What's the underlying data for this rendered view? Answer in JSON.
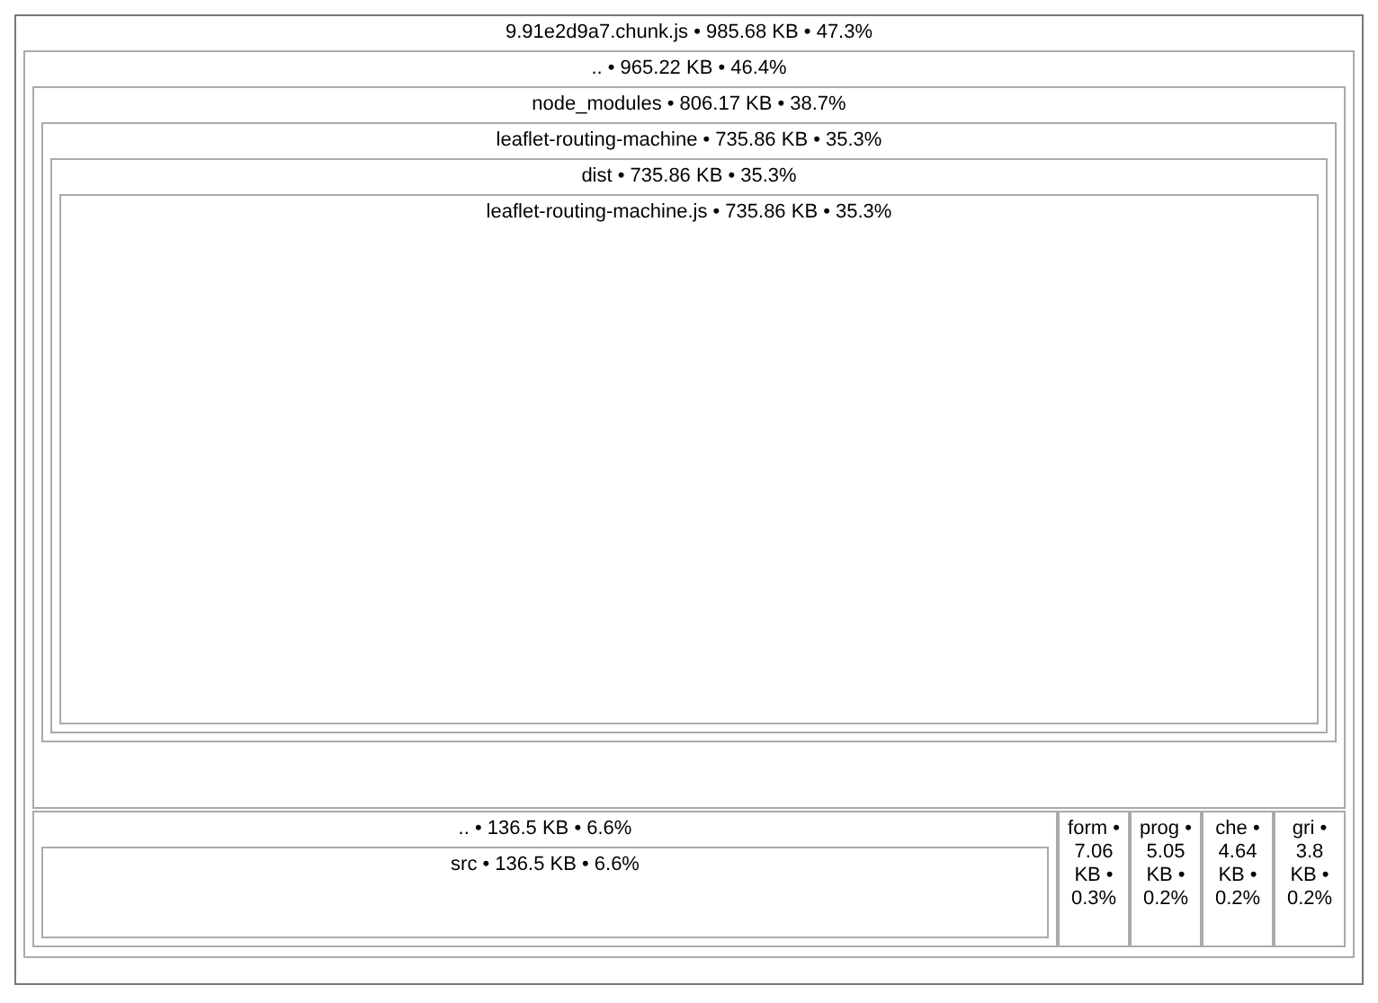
{
  "chart_data": {
    "type": "other",
    "categories": [
      "9.91e2d9a7.chunk.js",
      "..",
      "node_modules",
      "..",
      "form",
      "prog",
      "che",
      "gri",
      "leaflet-routing-machine",
      "src",
      "dist",
      "leaflet-routing-machine.js"
    ],
    "values": [
      985.68,
      965.22,
      806.17,
      136.5,
      7.06,
      5.05,
      4.64,
      3.8,
      735.86,
      136.5,
      735.86,
      735.86
    ],
    "value_labels": [
      "• 985.68 KB • 47.3%",
      "• 965.22 KB • 46.4%",
      "• 806.17 KB • 38.7%",
      "• 136.5 KB • 6.6%",
      "• 7.06 KB • 0.3%",
      "• 5.05 KB • 0.2%",
      "• 4.64 KB • 0.2%",
      "• 3.8 KB • 0.2%",
      "• 735.86 KB • 35.3%",
      "• 136.5 KB • 6.6%",
      "• 735.86 KB • 35.3%",
      "• 735.86 KB • 35.3%"
    ]
  }
}
